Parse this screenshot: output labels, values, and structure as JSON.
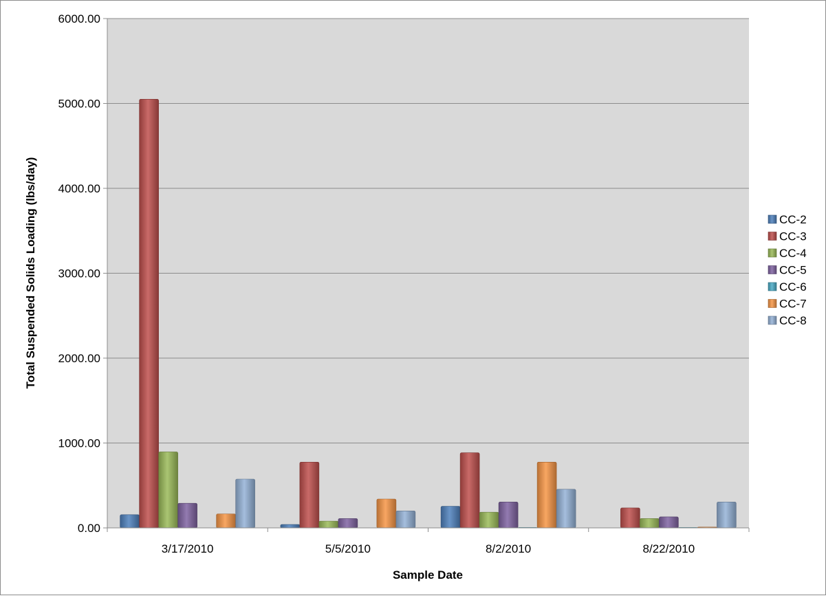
{
  "chart_data": {
    "type": "bar",
    "title": "",
    "xlabel": "Sample Date",
    "ylabel": "Total Suspended Solids Loading (lbs/day)",
    "ylim": [
      0,
      6000
    ],
    "yticks": [
      "0.00",
      "1000.00",
      "2000.00",
      "3000.00",
      "4000.00",
      "5000.00",
      "6000.00"
    ],
    "grid": true,
    "legend_position": "right",
    "categories": [
      "3/17/2010",
      "5/5/2010",
      "8/2/2010",
      "8/22/2010"
    ],
    "series": [
      {
        "name": "CC-2",
        "color": "#4f81bd",
        "values": [
          155,
          40,
          255,
          0
        ]
      },
      {
        "name": "CC-3",
        "color": "#c0504d",
        "values": [
          5050,
          775,
          885,
          235
        ]
      },
      {
        "name": "CC-4",
        "color": "#9bbb59",
        "values": [
          895,
          80,
          185,
          110
        ]
      },
      {
        "name": "CC-5",
        "color": "#8064a2",
        "values": [
          290,
          110,
          305,
          130
        ]
      },
      {
        "name": "CC-6",
        "color": "#4bacc6",
        "values": [
          0,
          0,
          5,
          5
        ]
      },
      {
        "name": "CC-7",
        "color": "#f79646",
        "values": [
          165,
          340,
          775,
          10
        ]
      },
      {
        "name": "CC-8",
        "color": "#95b3d7",
        "values": [
          575,
          200,
          455,
          305
        ]
      }
    ]
  }
}
